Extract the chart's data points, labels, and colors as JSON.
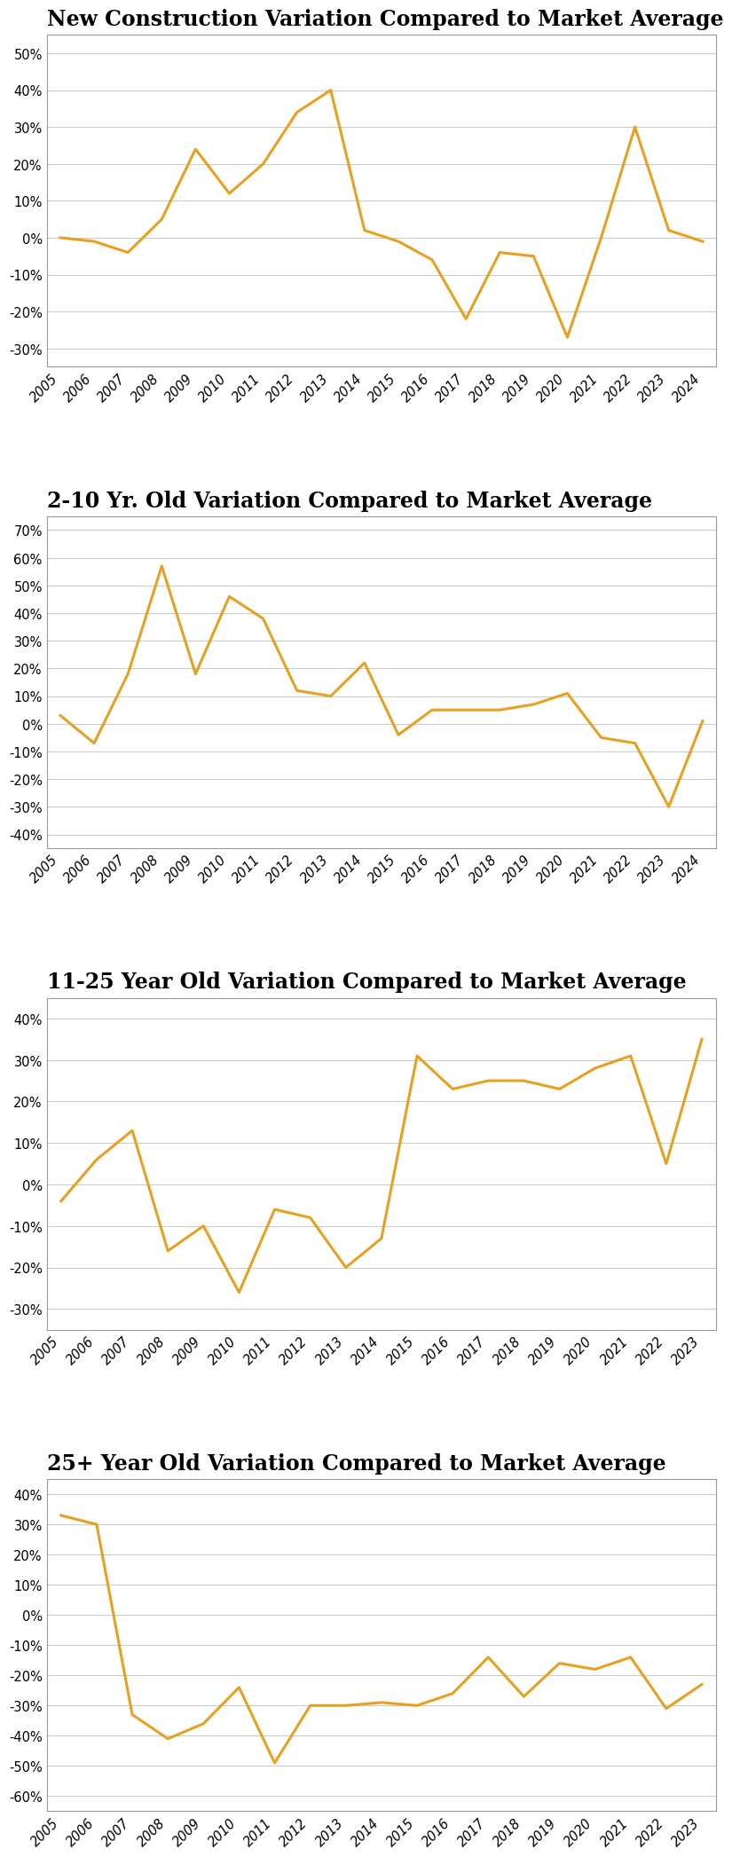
{
  "charts": [
    {
      "title": "New Construction Variation Compared to Market Average",
      "years": [
        2005,
        2006,
        2007,
        2008,
        2009,
        2010,
        2011,
        2012,
        2013,
        2014,
        2015,
        2016,
        2017,
        2018,
        2019,
        2020,
        2021,
        2022,
        2023,
        2024
      ],
      "values": [
        0,
        -1,
        -4,
        5,
        24,
        12,
        20,
        34,
        40,
        2,
        -1,
        -6,
        -22,
        -4,
        -5,
        -27,
        0,
        30,
        2,
        -1
      ],
      "ylim": [
        -35,
        55
      ],
      "yticks": [
        -30,
        -20,
        -10,
        0,
        10,
        20,
        30,
        40,
        50
      ]
    },
    {
      "title": "2-10 Yr. Old Variation Compared to Market Average",
      "years": [
        2005,
        2006,
        2007,
        2008,
        2009,
        2010,
        2011,
        2012,
        2013,
        2014,
        2015,
        2016,
        2017,
        2018,
        2019,
        2020,
        2021,
        2022,
        2023,
        2024
      ],
      "values": [
        3,
        -7,
        18,
        57,
        18,
        46,
        38,
        12,
        10,
        22,
        -4,
        5,
        5,
        5,
        7,
        11,
        -5,
        -7,
        -30,
        1
      ],
      "ylim": [
        -45,
        75
      ],
      "yticks": [
        -40,
        -30,
        -20,
        -10,
        0,
        10,
        20,
        30,
        40,
        50,
        60,
        70
      ]
    },
    {
      "title": "11-25 Year Old Variation Compared to Market Average",
      "years": [
        2005,
        2006,
        2007,
        2008,
        2009,
        2010,
        2011,
        2012,
        2013,
        2014,
        2015,
        2016,
        2017,
        2018,
        2019,
        2020,
        2021,
        2022,
        2023
      ],
      "values": [
        -4,
        6,
        13,
        -16,
        -10,
        -26,
        -6,
        -8,
        -20,
        -13,
        31,
        23,
        25,
        25,
        23,
        28,
        31,
        5,
        35
      ],
      "ylim": [
        -35,
        45
      ],
      "yticks": [
        -30,
        -20,
        -10,
        0,
        10,
        20,
        30,
        40
      ]
    },
    {
      "title": "25+ Year Old Variation Compared to Market Average",
      "years": [
        2005,
        2006,
        2007,
        2008,
        2009,
        2010,
        2011,
        2012,
        2013,
        2014,
        2015,
        2016,
        2017,
        2018,
        2019,
        2020,
        2021,
        2022,
        2023
      ],
      "values": [
        33,
        30,
        -33,
        -41,
        -36,
        -24,
        -49,
        -30,
        -30,
        -29,
        -30,
        -26,
        -14,
        -27,
        -16,
        -18,
        -14,
        -31,
        -23
      ],
      "ylim": [
        -65,
        45
      ],
      "yticks": [
        -60,
        -50,
        -40,
        -30,
        -20,
        -10,
        0,
        10,
        20,
        30,
        40
      ]
    }
  ],
  "line_color": "#E8A020",
  "line_width": 2.2,
  "background_color": "#ffffff",
  "grid_color": "#cccccc",
  "title_fontsize": 17,
  "tick_fontsize": 10.5,
  "fig_width": 8.67,
  "fig_height": 20.43
}
